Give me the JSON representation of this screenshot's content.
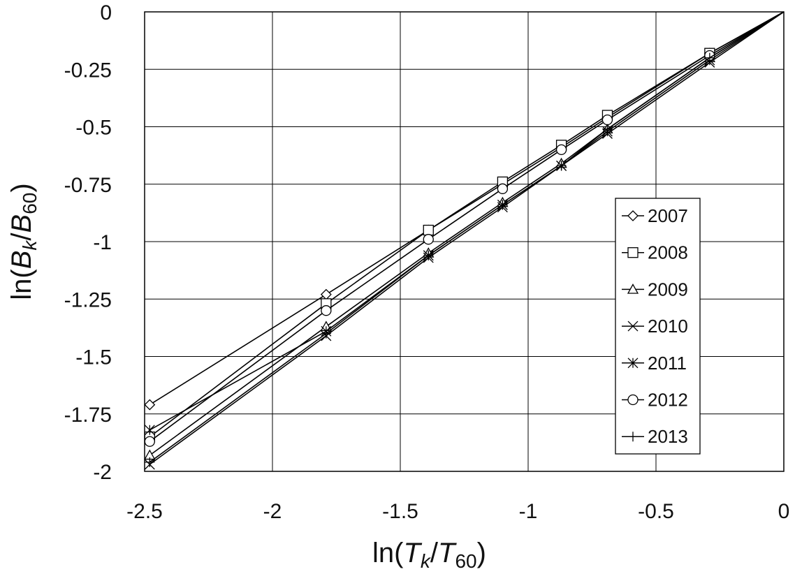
{
  "chart_data": {
    "type": "line",
    "xlabel_parts": [
      "ln(",
      "T",
      "k",
      "/",
      "T",
      "60",
      ")"
    ],
    "ylabel_parts": [
      "ln(",
      "B",
      "k",
      "/",
      "B",
      "60",
      ")"
    ],
    "xlim": [
      -2.5,
      0
    ],
    "ylim": [
      -2,
      0
    ],
    "x_ticks": [
      -2.5,
      -2,
      -1.5,
      -1,
      -0.5,
      0
    ],
    "x_tick_labels": [
      "-2.5",
      "-2",
      "-1.5",
      "-1",
      "-0.5",
      "0"
    ],
    "y_ticks": [
      0,
      -0.25,
      -0.5,
      -0.75,
      -1,
      -1.25,
      -1.5,
      -1.75,
      -2
    ],
    "y_tick_labels": [
      "0",
      "-0.25",
      "-0.5",
      "-0.75",
      "-1",
      "-1.25",
      "-1.5",
      "-1.75",
      "-2"
    ],
    "grid": true,
    "legend_position": "right",
    "x": [
      -2.48,
      -1.79,
      -1.39,
      -1.1,
      -0.87,
      -0.69,
      -0.29,
      0
    ],
    "series": [
      {
        "name": "2007",
        "marker": "diamond",
        "values": [
          -1.71,
          -1.23,
          -0.95,
          -0.75,
          -0.59,
          -0.46,
          -0.18,
          0
        ]
      },
      {
        "name": "2008",
        "marker": "square",
        "values": [
          -1.85,
          -1.27,
          -0.95,
          -0.74,
          -0.58,
          -0.45,
          -0.18,
          0
        ]
      },
      {
        "name": "2009",
        "marker": "triangle",
        "values": [
          -1.93,
          -1.37,
          -1.05,
          -0.83,
          -0.66,
          -0.51,
          -0.2,
          0
        ]
      },
      {
        "name": "2010",
        "marker": "x",
        "values": [
          -1.97,
          -1.41,
          -1.07,
          -0.85,
          -0.67,
          -0.53,
          -0.22,
          0
        ]
      },
      {
        "name": "2011",
        "marker": "asterisk",
        "values": [
          -1.82,
          -1.39,
          -1.06,
          -0.84,
          -0.67,
          -0.52,
          -0.21,
          0
        ]
      },
      {
        "name": "2012",
        "marker": "circle",
        "values": [
          -1.87,
          -1.3,
          -0.99,
          -0.77,
          -0.6,
          -0.47,
          -0.19,
          0
        ]
      },
      {
        "name": "2013",
        "marker": "plus",
        "values": [
          -1.96,
          -1.4,
          -1.06,
          -0.84,
          -0.67,
          -0.51,
          -0.2,
          0
        ]
      }
    ]
  }
}
